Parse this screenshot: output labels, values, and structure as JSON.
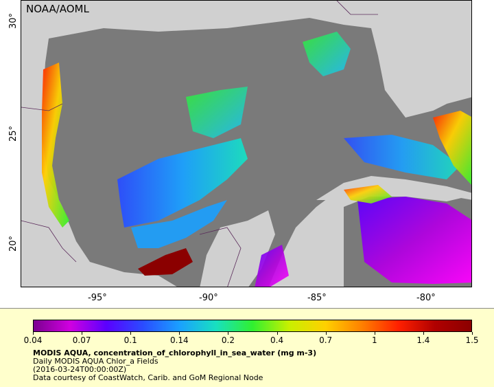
{
  "agency": "NOAA/AOML",
  "map": {
    "lat_ticks": [
      "30°",
      "25°",
      "20°"
    ],
    "lon_ticks": [
      "-95°",
      "-90°",
      "-85°",
      "-80°"
    ]
  },
  "colorbar": {
    "labels": [
      "0.04",
      "0.07",
      "0.1",
      "0.14",
      "0.2",
      "0.4",
      "0.7",
      "1",
      "1.4",
      "1.5"
    ],
    "colors": [
      "#7b0090",
      "#d000e0",
      "#5a00ff",
      "#2a4cff",
      "#1aa0ff",
      "#18e0c0",
      "#30f030",
      "#c8f000",
      "#ffd000",
      "#ff8000",
      "#ff2000",
      "#b00000",
      "#8b0000"
    ]
  },
  "meta": {
    "title": "MODIS AQUA, concentration_of_chlorophyll_in_sea_water (mg m-3)",
    "subtitle": "Daily MODIS AQUA Chlor_a Fields",
    "time": "(2016-03-24T00:00:00Z)",
    "credit": "Data courtesy of CoastWatch, Carib. and GoM Regional Node"
  }
}
